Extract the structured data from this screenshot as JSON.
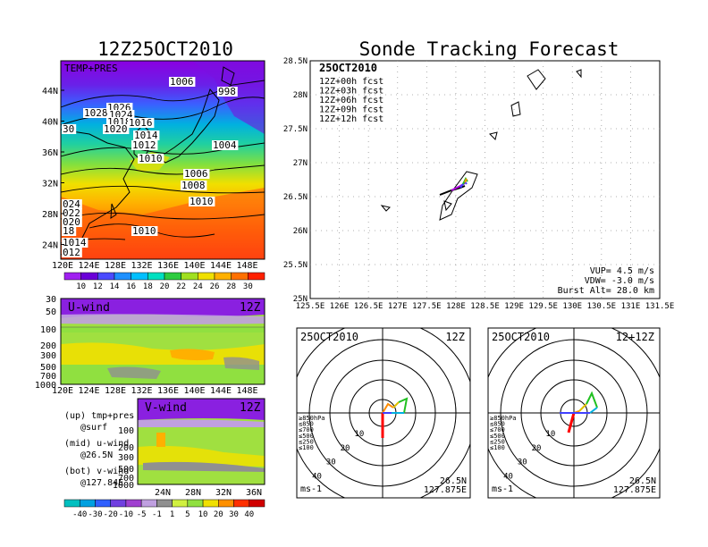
{
  "main_title": "12Z25OCT2010",
  "right_title": "Sonde Tracking Forecast",
  "surface_panel": {
    "label": "TEMP+PRES",
    "lat_ticks": [
      "44N",
      "40N",
      "36N",
      "32N",
      "28N",
      "24N"
    ],
    "lon_ticks": [
      "120E",
      "124E",
      "128E",
      "132E",
      "136E",
      "140E",
      "144E",
      "148E"
    ],
    "isobar_labels": [
      {
        "text": "1006"
      },
      {
        "text": "998"
      },
      {
        "text": "1028"
      },
      {
        "text": "1026"
      },
      {
        "text": "1024"
      },
      {
        "text": "1018"
      },
      {
        "text": "1016"
      },
      {
        "text": "1020"
      },
      {
        "text": "30"
      },
      {
        "text": "1014"
      },
      {
        "text": "1012"
      },
      {
        "text": "1004"
      },
      {
        "text": "1010"
      },
      {
        "text": "1006"
      },
      {
        "text": "1008"
      },
      {
        "text": "1010"
      },
      {
        "text": "024"
      },
      {
        "text": "022"
      },
      {
        "text": "020"
      },
      {
        "text": "18"
      },
      {
        "text": "1010"
      },
      {
        "text": "1014"
      },
      {
        "text": "012"
      }
    ]
  },
  "temp_colorbar": {
    "labels": [
      "10",
      "12",
      "14",
      "16",
      "18",
      "20",
      "22",
      "24",
      "26",
      "28",
      "30"
    ],
    "colors": [
      "#a020f0",
      "#6a00d8",
      "#4b4bff",
      "#1e90ff",
      "#00bfff",
      "#00e0c0",
      "#2ecc40",
      "#a0e020",
      "#f0e000",
      "#ffb000",
      "#ff7000",
      "#ff2000"
    ]
  },
  "u_panel": {
    "label": "U-wind",
    "time": "12Z",
    "p_ticks": [
      "30",
      "50",
      "100",
      "200",
      "300",
      "500",
      "700",
      "1000"
    ],
    "lon_ticks": [
      "120E",
      "124E",
      "128E",
      "132E",
      "136E",
      "140E",
      "144E",
      "148E"
    ]
  },
  "v_panel": {
    "label": "V-wind",
    "time": "12Z",
    "p_ticks": [
      "100",
      "200",
      "300",
      "500",
      "700",
      "1000"
    ],
    "lat_ticks": [
      "24N",
      "28N",
      "32N",
      "36N"
    ]
  },
  "legend_notes": [
    {
      "line1": "(up) tmp+pres",
      "line2": "@surf"
    },
    {
      "line1": "(mid) u-wind",
      "line2": "@26.5N"
    },
    {
      "line1": "(bot) v-wind",
      "line2": "@127.84E"
    }
  ],
  "wind_colorbar": {
    "labels": [
      "-40",
      "-30",
      "-20",
      "-10",
      "-5",
      "-1",
      "1",
      "5",
      "10",
      "20",
      "30",
      "40"
    ],
    "colors": [
      "#00c0c0",
      "#00a0e0",
      "#3060ff",
      "#7040e0",
      "#a040d0",
      "#c0a0e0",
      "#909090",
      "#d0f040",
      "#90e040",
      "#f0e000",
      "#ff9000",
      "#ff3000",
      "#d00000"
    ]
  },
  "track_map": {
    "date": "25OCT2010",
    "forecasts": [
      {
        "label": "12Z+00h  fcst",
        "color": "#000000"
      },
      {
        "label": "12Z+03h  fcst",
        "color": "#b000e0"
      },
      {
        "label": "12Z+06h  fcst",
        "color": "#4040ff"
      },
      {
        "label": "12Z+09h  fcst",
        "color": "#20c020"
      },
      {
        "label": "12Z+12h  fcst",
        "color": "#ff8c00"
      }
    ],
    "lat_ticks": [
      "28.5N",
      "28N",
      "27.5N",
      "27N",
      "26.5N",
      "26N",
      "25.5N",
      "25N"
    ],
    "lon_ticks": [
      "125.5E",
      "126E",
      "126.5E",
      "127E",
      "127.5E",
      "128E",
      "128.5E",
      "129E",
      "129.5E",
      "130E",
      "130.5E",
      "131E",
      "131.5E"
    ],
    "stats": [
      "VUP=  4.5  m/s",
      "VDW= -3.0  m/s",
      "Burst Alt=  28.0  km"
    ]
  },
  "polar_left": {
    "date": "25OCT2010",
    "time": "12Z",
    "location": [
      "26.5N",
      "127.875E"
    ],
    "unit": "ms-1",
    "levels": [
      "≥850hPa",
      "≤850",
      "≤700",
      "≤500",
      "≤250",
      "≤100"
    ],
    "level_colors": [
      "#ff0000",
      "#ff8c00",
      "#e0c000",
      "#20c020",
      "#00b0e0",
      "#4040ff"
    ],
    "ring_labels": [
      "10",
      "20",
      "30",
      "40"
    ]
  },
  "polar_right": {
    "date": "25OCT2010",
    "time": "12+12Z",
    "location": [
      "26.5N",
      "127.875E"
    ],
    "unit": "ms-1",
    "levels": [
      "≥850hPa",
      "≤850",
      "≤700",
      "≤500",
      "≤250",
      "≤100"
    ],
    "level_colors": [
      "#ff0000",
      "#ff8c00",
      "#e0c000",
      "#20c020",
      "#00b0e0",
      "#4040ff"
    ],
    "ring_labels": [
      "10",
      "20",
      "30",
      "40"
    ]
  }
}
